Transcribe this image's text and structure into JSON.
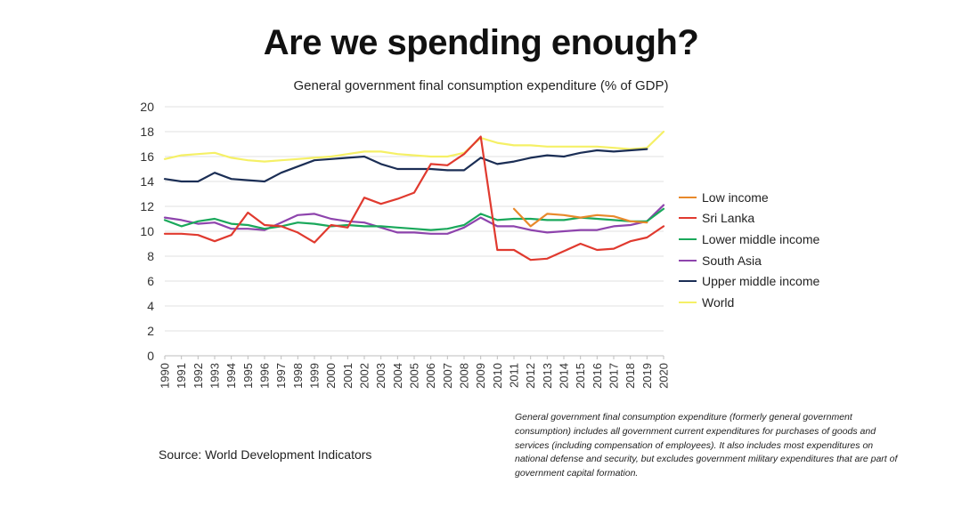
{
  "title": "Are we spending enough?",
  "subtitle": "General government final consumption expenditure (% of GDP)",
  "source": "Source: World Development Indicators",
  "note": "General government final consumption expenditure (formerly general government consumption) includes all government current expenditures for purchases of goods and services (including compensation of employees). It also includes most expenditures on national defense and security, but excludes government military expenditures that are part of government capital formation.",
  "chart_data": {
    "type": "line",
    "title": "General government final consumption expenditure (% of GDP)",
    "xlabel": "",
    "ylabel": "",
    "ylim": [
      0,
      20
    ],
    "yticks": [
      0,
      2,
      4,
      6,
      8,
      10,
      12,
      14,
      16,
      18,
      20
    ],
    "grid": true,
    "legend": "right",
    "x": [
      "1990",
      "1991",
      "1992",
      "1993",
      "1994",
      "1995",
      "1996",
      "1997",
      "1998",
      "1999",
      "2000",
      "2001",
      "2002",
      "2003",
      "2004",
      "2005",
      "2006",
      "2007",
      "2008",
      "2009",
      "2010",
      "2011",
      "2012",
      "2013",
      "2014",
      "2015",
      "2016",
      "2017",
      "2018",
      "2019",
      "2020"
    ],
    "series": [
      {
        "name": "Low income",
        "color": "#e8892b",
        "values": [
          null,
          null,
          null,
          null,
          null,
          null,
          null,
          null,
          null,
          null,
          null,
          null,
          null,
          null,
          null,
          null,
          null,
          null,
          null,
          null,
          null,
          11.8,
          10.4,
          11.4,
          11.3,
          11.1,
          11.3,
          11.2,
          10.8,
          10.7,
          null
        ]
      },
      {
        "name": "Sri Lanka",
        "color": "#e03a2f",
        "values": [
          9.8,
          9.8,
          9.7,
          9.2,
          9.7,
          11.5,
          10.5,
          10.4,
          9.9,
          9.1,
          10.5,
          10.3,
          12.7,
          12.2,
          12.6,
          13.1,
          15.4,
          15.3,
          16.2,
          17.6,
          8.5,
          8.5,
          7.7,
          7.8,
          8.4,
          9.0,
          8.5,
          8.6,
          9.2,
          9.5,
          10.4
        ]
      },
      {
        "name": "Lower middle income",
        "color": "#1aa85b",
        "values": [
          10.9,
          10.4,
          10.8,
          11.0,
          10.6,
          10.5,
          10.2,
          10.4,
          10.7,
          10.6,
          10.4,
          10.5,
          10.4,
          10.4,
          10.3,
          10.2,
          10.1,
          10.2,
          10.5,
          11.4,
          10.9,
          11.0,
          11.0,
          10.9,
          10.9,
          11.1,
          11.0,
          10.9,
          10.8,
          10.8,
          11.8
        ]
      },
      {
        "name": "South Asia",
        "color": "#8e44ad",
        "values": [
          11.1,
          10.9,
          10.6,
          10.7,
          10.2,
          10.2,
          10.1,
          10.7,
          11.3,
          11.4,
          11.0,
          10.8,
          10.7,
          10.3,
          9.9,
          9.9,
          9.8,
          9.8,
          10.3,
          11.1,
          10.4,
          10.4,
          10.1,
          9.9,
          10.0,
          10.1,
          10.1,
          10.4,
          10.5,
          10.8,
          12.1
        ]
      },
      {
        "name": "Upper middle income",
        "color": "#1b2e55",
        "values": [
          14.2,
          14.0,
          14.0,
          14.7,
          14.2,
          14.1,
          14.0,
          14.7,
          15.2,
          15.7,
          15.8,
          15.9,
          16.0,
          15.4,
          15.0,
          15.0,
          15.0,
          14.9,
          14.9,
          15.9,
          15.4,
          15.6,
          15.9,
          16.1,
          16.0,
          16.3,
          16.5,
          16.4,
          16.5,
          16.6,
          null
        ]
      },
      {
        "name": "World",
        "color": "#f5f066",
        "values": [
          15.8,
          16.1,
          16.2,
          16.3,
          15.9,
          15.7,
          15.6,
          15.7,
          15.8,
          15.9,
          16.0,
          16.2,
          16.4,
          16.4,
          16.2,
          16.1,
          16.0,
          16.0,
          16.3,
          17.5,
          17.1,
          16.9,
          16.9,
          16.8,
          16.8,
          16.8,
          16.8,
          16.7,
          16.6,
          16.7,
          18.0
        ]
      }
    ]
  }
}
